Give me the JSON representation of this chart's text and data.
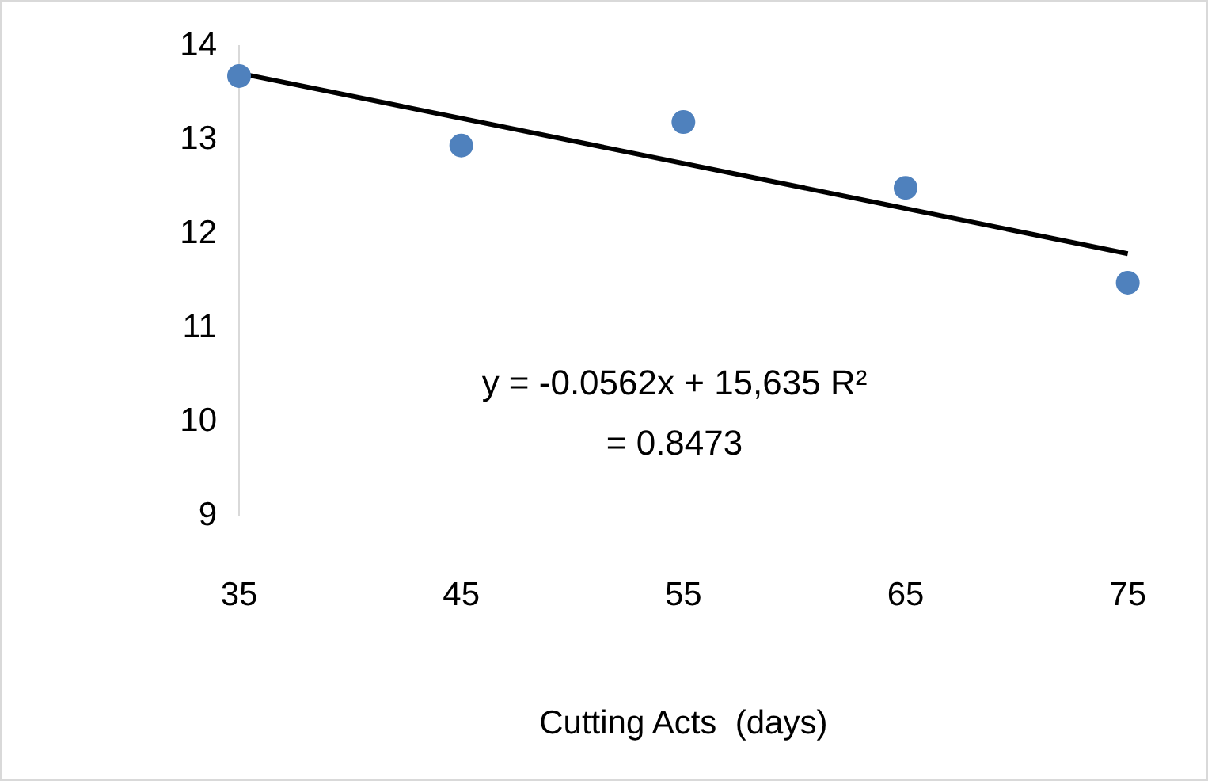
{
  "chart_data": {
    "type": "scatter",
    "xlabel": "Cutting Acts  (days)",
    "x": [
      35,
      45,
      55,
      65,
      75
    ],
    "series": [
      {
        "color": "#4f81bd",
        "values": [
          13.68,
          12.94,
          13.19,
          12.49,
          11.48
        ],
        "marker": "circle"
      },
      {
        "type": "line",
        "color": "#000000",
        "x": [
          35,
          75
        ],
        "values": [
          13.71,
          11.79
        ],
        "marker": "none"
      }
    ],
    "xlim": [
      35,
      75
    ],
    "xticks": [
      35,
      45,
      55,
      65,
      75
    ],
    "ylim": [
      9,
      14
    ],
    "yticks": [
      9,
      10,
      11,
      12,
      13,
      14
    ],
    "grid": false,
    "legend": false,
    "annotations": [
      "y = -0.0562x + 15,635 R² = 0.8473"
    ]
  }
}
